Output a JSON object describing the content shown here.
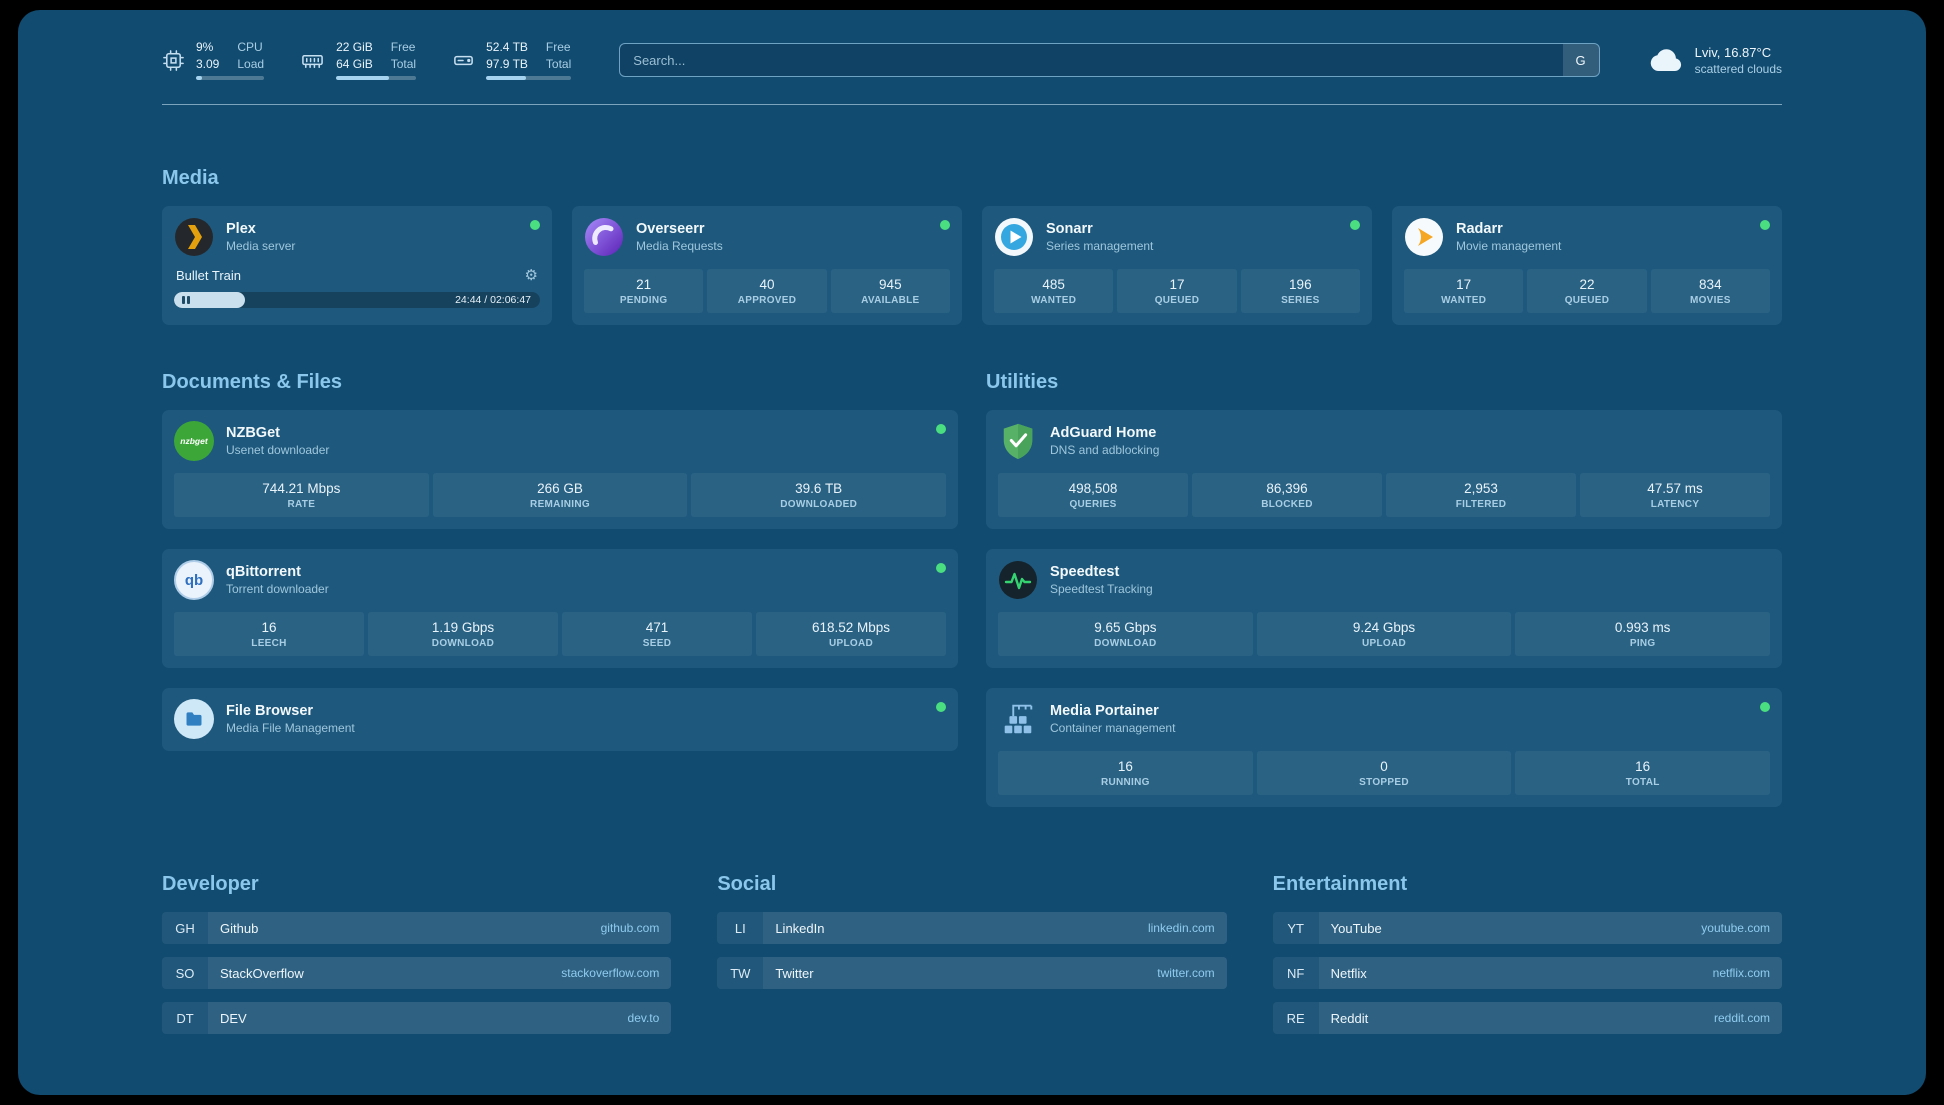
{
  "topbar": {
    "resources": [
      {
        "icon": "cpu-icon",
        "value1": "9%",
        "value2": "3.09",
        "label1": "CPU",
        "label2": "Load",
        "progress": 9
      },
      {
        "icon": "memory-icon",
        "value1": "22 GiB",
        "value2": "64 GiB",
        "label1": "Free",
        "label2": "Total",
        "progress": 66
      },
      {
        "icon": "disk-icon",
        "value1": "52.4 TB",
        "value2": "97.9 TB",
        "label1": "Free",
        "label2": "Total",
        "progress": 47
      }
    ],
    "search": {
      "placeholder": "Search...",
      "provider": "G"
    },
    "weather": {
      "icon": "cloud-icon",
      "location": "Lviv, 16.87°C",
      "condition": "scattered clouds"
    }
  },
  "media": {
    "title": "Media",
    "cards": [
      {
        "icon": "plex-icon",
        "title": "Plex",
        "subtitle": "Media server",
        "status": "online",
        "player": {
          "track": "Bullet Train",
          "time": "24:44 / 02:06:47",
          "progress": 19.5
        }
      },
      {
        "icon": "overseerr-icon",
        "title": "Overseerr",
        "subtitle": "Media Requests",
        "status": "online",
        "stats": [
          {
            "value": "21",
            "label": "PENDING"
          },
          {
            "value": "40",
            "label": "APPROVED"
          },
          {
            "value": "945",
            "label": "AVAILABLE"
          }
        ]
      },
      {
        "icon": "sonarr-icon",
        "title": "Sonarr",
        "subtitle": "Series management",
        "status": "online",
        "stats": [
          {
            "value": "485",
            "label": "WANTED"
          },
          {
            "value": "17",
            "label": "QUEUED"
          },
          {
            "value": "196",
            "label": "SERIES"
          }
        ]
      },
      {
        "icon": "radarr-icon",
        "title": "Radarr",
        "subtitle": "Movie management",
        "status": "online",
        "stats": [
          {
            "value": "17",
            "label": "WANTED"
          },
          {
            "value": "22",
            "label": "QUEUED"
          },
          {
            "value": "834",
            "label": "MOVIES"
          }
        ]
      }
    ]
  },
  "documents": {
    "title": "Documents & Files",
    "cards": [
      {
        "icon": "nzbget-icon",
        "icon_text": "nzbget",
        "title": "NZBGet",
        "subtitle": "Usenet downloader",
        "status": "online",
        "stats": [
          {
            "value": "744.21 Mbps",
            "label": "RATE"
          },
          {
            "value": "266 GB",
            "label": "REMAINING"
          },
          {
            "value": "39.6 TB",
            "label": "DOWNLOADED"
          }
        ]
      },
      {
        "icon": "qbittorrent-icon",
        "icon_text": "qb",
        "title": "qBittorrent",
        "subtitle": "Torrent downloader",
        "status": "online",
        "stats": [
          {
            "value": "16",
            "label": "LEECH"
          },
          {
            "value": "1.19 Gbps",
            "label": "DOWNLOAD"
          },
          {
            "value": "471",
            "label": "SEED"
          },
          {
            "value": "618.52 Mbps",
            "label": "UPLOAD"
          }
        ]
      },
      {
        "icon": "filebrowser-icon",
        "title": "File Browser",
        "subtitle": "Media File Management",
        "status": "online",
        "stats": []
      }
    ]
  },
  "utilities": {
    "title": "Utilities",
    "cards": [
      {
        "icon": "adguard-icon",
        "title": "AdGuard Home",
        "subtitle": "DNS and adblocking",
        "stats": [
          {
            "value": "498,508",
            "label": "QUERIES"
          },
          {
            "value": "86,396",
            "label": "BLOCKED"
          },
          {
            "value": "2,953",
            "label": "FILTERED"
          },
          {
            "value": "47.57 ms",
            "label": "LATENCY"
          }
        ]
      },
      {
        "icon": "speedtest-icon",
        "title": "Speedtest",
        "subtitle": "Speedtest Tracking",
        "stats": [
          {
            "value": "9.65 Gbps",
            "label": "DOWNLOAD"
          },
          {
            "value": "9.24 Gbps",
            "label": "UPLOAD"
          },
          {
            "value": "0.993 ms",
            "label": "PING"
          }
        ]
      },
      {
        "icon": "portainer-icon",
        "title": "Media Portainer",
        "subtitle": "Container management",
        "status": "online",
        "stats": [
          {
            "value": "16",
            "label": "RUNNING"
          },
          {
            "value": "0",
            "label": "STOPPED"
          },
          {
            "value": "16",
            "label": "TOTAL"
          }
        ]
      }
    ]
  },
  "bookmarks": {
    "groups": [
      {
        "title": "Developer",
        "items": [
          {
            "abbr": "GH",
            "name": "Github",
            "url": "github.com"
          },
          {
            "abbr": "SO",
            "name": "StackOverflow",
            "url": "stackoverflow.com"
          },
          {
            "abbr": "DT",
            "name": "DEV",
            "url": "dev.to"
          }
        ]
      },
      {
        "title": "Social",
        "items": [
          {
            "abbr": "LI",
            "name": "LinkedIn",
            "url": "linkedin.com"
          },
          {
            "abbr": "TW",
            "name": "Twitter",
            "url": "twitter.com"
          }
        ]
      },
      {
        "title": "Entertainment",
        "items": [
          {
            "abbr": "YT",
            "name": "YouTube",
            "url": "youtube.com"
          },
          {
            "abbr": "NF",
            "name": "Netflix",
            "url": "netflix.com"
          },
          {
            "abbr": "RE",
            "name": "Reddit",
            "url": "reddit.com"
          }
        ]
      }
    ]
  }
}
